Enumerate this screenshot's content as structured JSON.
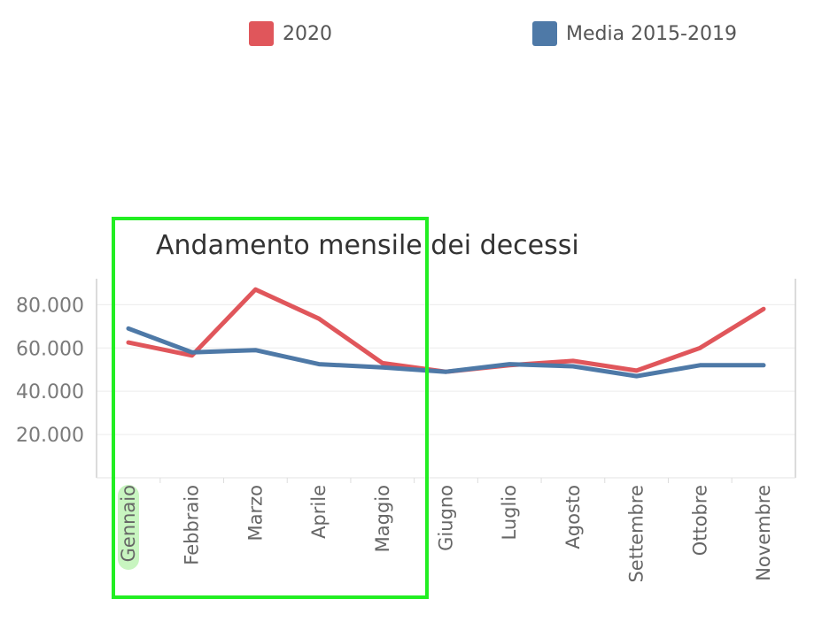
{
  "legend": {
    "items": [
      {
        "label": "2020",
        "color": "#e0565b"
      },
      {
        "label": "Media 2015-2019",
        "color": "#4e79a7"
      }
    ]
  },
  "highlight": {
    "color": "#22ee22",
    "selected_category": "Gennaio"
  },
  "chart_data": {
    "type": "line",
    "title": "Andamento mensile dei decessi",
    "xlabel": "",
    "ylabel": "",
    "categories": [
      "Gennaio",
      "Febbraio",
      "Marzo",
      "Aprile",
      "Maggio",
      "Giugno",
      "Luglio",
      "Agosto",
      "Settembre",
      "Ottobre",
      "Novembre"
    ],
    "ylim": [
      0,
      92000
    ],
    "yticks": [
      20000,
      40000,
      60000,
      80000
    ],
    "ytick_labels": [
      "20.000",
      "40.000",
      "60.000",
      "80.000"
    ],
    "grid": true,
    "legend_position": "top",
    "series": [
      {
        "name": "2020",
        "color": "#e0565b",
        "values": [
          62500,
          56500,
          87000,
          73500,
          53000,
          49000,
          52000,
          54000,
          49500,
          60000,
          78000
        ]
      },
      {
        "name": "Media 2015-2019",
        "color": "#4e79a7",
        "values": [
          69000,
          58000,
          59000,
          52500,
          51000,
          49000,
          52500,
          51500,
          47000,
          52000,
          52000
        ]
      }
    ]
  }
}
